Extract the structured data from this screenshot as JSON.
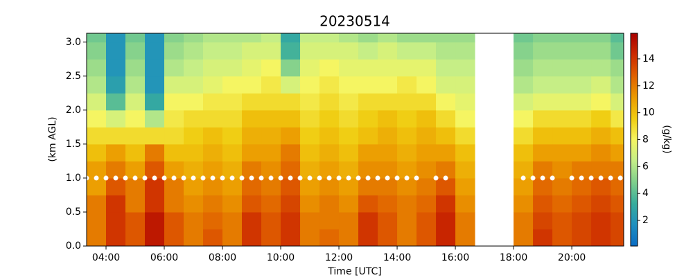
{
  "chart_data": {
    "type": "heatmap",
    "title": "20230514",
    "x_label": "Time [UTC]",
    "y_label": "(km AGL)",
    "colorbar_label": "(g/kg)",
    "x": [
      200,
      240,
      280,
      320,
      360,
      400,
      440,
      480,
      520,
      560,
      600,
      640,
      680,
      720,
      760,
      800,
      840,
      880,
      920,
      960,
      1000,
      1040,
      1080,
      1120,
      1160,
      1200,
      1240,
      1280
    ],
    "y": [
      0,
      0.25,
      0.5,
      0.75,
      1.0,
      1.25,
      1.5,
      1.75,
      2.0,
      2.25,
      2.5,
      2.75,
      3.0
    ],
    "values": [
      [
        12,
        12,
        12,
        11,
        11,
        10,
        9,
        8,
        7,
        6,
        5.5,
        5,
        4.5
      ],
      [
        14,
        14,
        14,
        13,
        12,
        11,
        9,
        7,
        4,
        2.5,
        2,
        2,
        2
      ],
      [
        13,
        13,
        12,
        12,
        11,
        10,
        9,
        8,
        7,
        6,
        5.5,
        5,
        4.5
      ],
      [
        15,
        15,
        14,
        14,
        13,
        12,
        9,
        6,
        3,
        2,
        2,
        2,
        2
      ],
      [
        13,
        13,
        12,
        12,
        11,
        10,
        9,
        8.5,
        8,
        7,
        6,
        5.5,
        5
      ],
      [
        12,
        12,
        11.5,
        11,
        10.5,
        10,
        9.5,
        9,
        8,
        7,
        6.5,
        6,
        5.5
      ],
      [
        13,
        12.5,
        12,
        11.5,
        11,
        10.5,
        10,
        9,
        8.5,
        7.5,
        7,
        6.5,
        6
      ],
      [
        12,
        12,
        11.5,
        11,
        10.5,
        10,
        9.5,
        9,
        8.5,
        8,
        7,
        6.5,
        6
      ],
      [
        14,
        14,
        13,
        12.5,
        12,
        11,
        10.5,
        10,
        9,
        8,
        7.5,
        7,
        6
      ],
      [
        13,
        13,
        12.5,
        12,
        11.5,
        11,
        10.5,
        10,
        9,
        8.5,
        8,
        7,
        6.5
      ],
      [
        14,
        14,
        13.5,
        13,
        12.5,
        12,
        11,
        10,
        9,
        7,
        5,
        3.5,
        3
      ],
      [
        12,
        12,
        11.5,
        11,
        10.5,
        10,
        9.5,
        9,
        8.5,
        8,
        7.5,
        7,
        6.5
      ],
      [
        12.5,
        12,
        12,
        11.5,
        11,
        10.5,
        10,
        9.5,
        9,
        8.5,
        8,
        7,
        6.5
      ],
      [
        12,
        12,
        11.5,
        11,
        10.5,
        10,
        9.5,
        9,
        8.5,
        8,
        7.5,
        7,
        6
      ],
      [
        14,
        14,
        13,
        12,
        11.5,
        11,
        10,
        9.5,
        9,
        8,
        7.5,
        6.5,
        5.5
      ],
      [
        13,
        13,
        12.5,
        12,
        11.5,
        11,
        10.5,
        10,
        9,
        8,
        7.5,
        7,
        6
      ],
      [
        12,
        12,
        12,
        11.5,
        11,
        10.5,
        10,
        9.5,
        9,
        8.5,
        7.5,
        6.5,
        5.5
      ],
      [
        13,
        13,
        12.5,
        12,
        11.5,
        11,
        10.5,
        10,
        9,
        8,
        7.5,
        6.5,
        5.5
      ],
      [
        14.5,
        14.5,
        14,
        13,
        12,
        11,
        10,
        9,
        8,
        7,
        6.5,
        6,
        5.5
      ],
      [
        12,
        12,
        11.5,
        11,
        10.5,
        10,
        9,
        8,
        7.5,
        7,
        6.5,
        6,
        5.5
      ],
      null,
      null,
      [
        12,
        12,
        11.5,
        11,
        10.5,
        10,
        9,
        8,
        7,
        6,
        5.5,
        5,
        4.5
      ],
      [
        14,
        13.5,
        13,
        12.5,
        12,
        11,
        10,
        9,
        7.5,
        6.5,
        6,
        5.5,
        5
      ],
      [
        13,
        13,
        12.5,
        12,
        11.5,
        11,
        10,
        9,
        7.5,
        6.5,
        6,
        5.5,
        5
      ],
      [
        13.5,
        13.5,
        13,
        12.5,
        12,
        11,
        10,
        9,
        7.5,
        6.5,
        6,
        5.5,
        5
      ],
      [
        14,
        14,
        13.5,
        13,
        12,
        11.5,
        10.5,
        9.5,
        8,
        7,
        6,
        5.5,
        5
      ],
      [
        13.5,
        13.5,
        13,
        12.5,
        12,
        11,
        10,
        8.5,
        7,
        6,
        5.5,
        4.5,
        4
      ]
    ],
    "markers": {
      "color": "#ffffff",
      "x": [
        200,
        220,
        240,
        260,
        280,
        300,
        320,
        340,
        360,
        380,
        400,
        420,
        440,
        460,
        480,
        500,
        520,
        540,
        560,
        580,
        600,
        620,
        640,
        660,
        680,
        700,
        720,
        740,
        760,
        780,
        800,
        820,
        840,
        860,
        880,
        920,
        940,
        1100,
        1120,
        1140,
        1160,
        1200,
        1220,
        1240,
        1260,
        1280,
        1300
      ],
      "y": [
        1.0,
        1.0,
        1.0,
        1.0,
        1.0,
        1.0,
        1.0,
        1.0,
        1.0,
        1.0,
        1.0,
        1.0,
        1.0,
        1.0,
        1.0,
        1.0,
        1.0,
        1.0,
        1.0,
        1.0,
        1.0,
        1.0,
        1.0,
        1.0,
        1.0,
        1.0,
        1.0,
        1.0,
        1.0,
        1.0,
        1.0,
        1.0,
        1.0,
        1.0,
        1.0,
        1.0,
        1.0,
        1.0,
        1.0,
        1.0,
        1.0,
        1.0,
        1.0,
        1.0,
        1.0,
        1.0,
        1.0
      ]
    },
    "xlim": [
      200,
      1307
    ],
    "ylim": [
      0,
      3.13
    ],
    "xticks": [
      {
        "value": 240,
        "label": "04:00"
      },
      {
        "value": 360,
        "label": "06:00"
      },
      {
        "value": 480,
        "label": "08:00"
      },
      {
        "value": 600,
        "label": "10:00"
      },
      {
        "value": 720,
        "label": "12:00"
      },
      {
        "value": 840,
        "label": "14:00"
      },
      {
        "value": 960,
        "label": "16:00"
      },
      {
        "value": 1080,
        "label": "18:00"
      },
      {
        "value": 1200,
        "label": "20:00"
      }
    ],
    "yticks": [
      {
        "value": 0,
        "label": "0.0"
      },
      {
        "value": 0.5,
        "label": "0.5"
      },
      {
        "value": 1.0,
        "label": "1.0"
      },
      {
        "value": 1.5,
        "label": "1.5"
      },
      {
        "value": 2.0,
        "label": "2.0"
      },
      {
        "value": 2.5,
        "label": "2.5"
      },
      {
        "value": 3.0,
        "label": "3.0"
      }
    ],
    "clim": [
      0.1,
      15.9
    ],
    "cticks": [
      2,
      4,
      6,
      8,
      10,
      12,
      14
    ],
    "colormap": [
      "#0a6cc4",
      "#1e8fbf",
      "#38ad9c",
      "#7fcf8c",
      "#c4ee88",
      "#f5f562",
      "#f0cc10",
      "#eb9a00",
      "#e06000",
      "#cc2a00",
      "#a80000"
    ]
  }
}
